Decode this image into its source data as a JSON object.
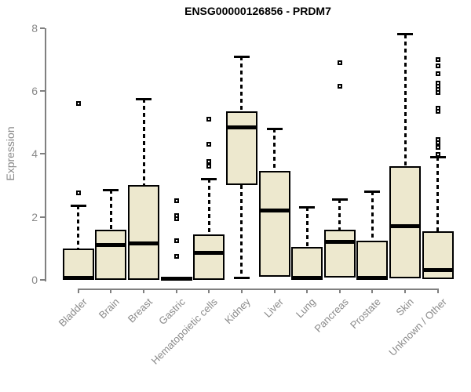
{
  "chart_data": {
    "type": "boxplot",
    "title": "ENSG00000126856 - PRDM7",
    "ylabel": "Expression",
    "xlabel": "",
    "ylim": [
      0,
      8
    ],
    "yticks": [
      0,
      2,
      4,
      6,
      8
    ],
    "grid": false,
    "legend": "none",
    "categories": [
      "Bladder",
      "Brain",
      "Breast",
      "Gastric",
      "Hematopoietic cells",
      "Kidney",
      "Liver",
      "Lung",
      "Pancreas",
      "Prostate",
      "Skin",
      "Unknown / Other"
    ],
    "boxes": [
      {
        "category": "Bladder",
        "whisker_low": 0,
        "q1": 0,
        "median": 0.05,
        "q3": 1.0,
        "whisker_high": 2.35,
        "outliers": [
          2.75,
          5.6
        ]
      },
      {
        "category": "Brain",
        "whisker_low": 0,
        "q1": 0,
        "median": 1.1,
        "q3": 1.6,
        "whisker_high": 2.85,
        "outliers": []
      },
      {
        "category": "Breast",
        "whisker_low": 0,
        "q1": 0,
        "median": 1.15,
        "q3": 3.0,
        "whisker_high": 5.75,
        "outliers": []
      },
      {
        "category": "Gastric",
        "whisker_low": 0,
        "q1": 0,
        "median": 0.04,
        "q3": 0.07,
        "whisker_high": 0.07,
        "outliers": [
          0.75,
          1.25,
          1.95,
          2.05,
          2.5
        ]
      },
      {
        "category": "Hematopoietic cells",
        "whisker_low": 0,
        "q1": 0,
        "median": 0.85,
        "q3": 1.45,
        "whisker_high": 3.2,
        "outliers": [
          3.6,
          3.75,
          4.3,
          5.1
        ]
      },
      {
        "category": "Kidney",
        "whisker_low": 0.05,
        "q1": 3.0,
        "median": 4.85,
        "q3": 5.35,
        "whisker_high": 7.1,
        "outliers": []
      },
      {
        "category": "Liver",
        "whisker_low": 0.05,
        "q1": 0.1,
        "median": 2.2,
        "q3": 3.45,
        "whisker_high": 4.8,
        "outliers": []
      },
      {
        "category": "Lung",
        "whisker_low": 0,
        "q1": 0,
        "median": 0.05,
        "q3": 1.05,
        "whisker_high": 2.3,
        "outliers": []
      },
      {
        "category": "Pancreas",
        "whisker_low": 0.05,
        "q1": 0.07,
        "median": 1.2,
        "q3": 1.6,
        "whisker_high": 2.55,
        "outliers": [
          6.15,
          6.9
        ]
      },
      {
        "category": "Prostate",
        "whisker_low": 0,
        "q1": 0,
        "median": 0.05,
        "q3": 1.25,
        "whisker_high": 2.8,
        "outliers": []
      },
      {
        "category": "Skin",
        "whisker_low": 0.02,
        "q1": 0.05,
        "median": 1.7,
        "q3": 3.6,
        "whisker_high": 7.8,
        "outliers": []
      },
      {
        "category": "Unknown / Other",
        "whisker_low": 0.02,
        "q1": 0.02,
        "median": 0.3,
        "q3": 1.55,
        "whisker_high": 3.9,
        "outliers": [
          3.98,
          4.2,
          4.35,
          4.45,
          5.35,
          5.45,
          5.95,
          6.05,
          6.15,
          6.25,
          6.55,
          6.8,
          7.0
        ]
      }
    ],
    "colors": {
      "box_fill": "#EDE8CE",
      "box_border": "#000000",
      "median": "#000000",
      "whisker": "#000000",
      "outlier_border": "#000000",
      "axis": "#808080",
      "axis_text": "#8a8a8a",
      "title_text": "#000000",
      "background": "#ffffff"
    }
  }
}
